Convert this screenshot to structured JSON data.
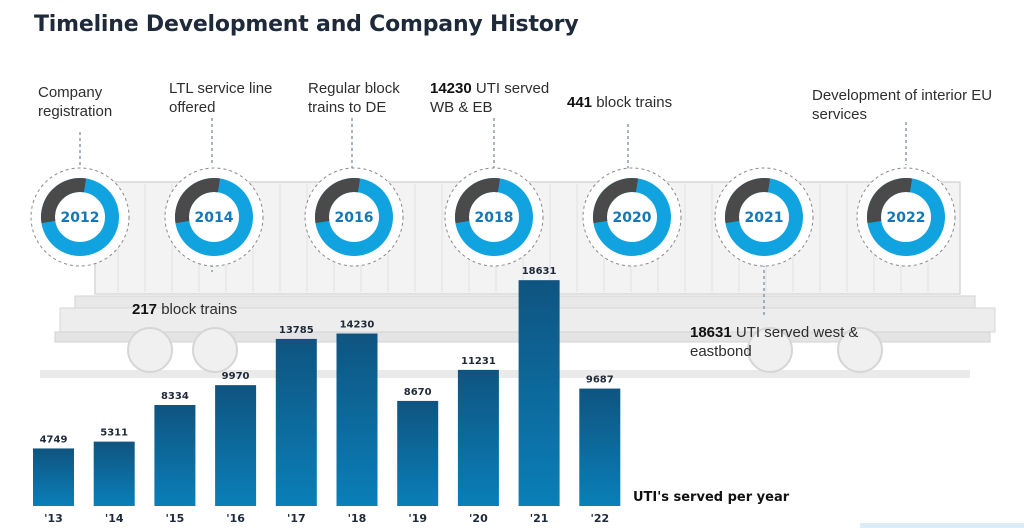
{
  "title": "Timeline Development and Company History",
  "milestones": [
    {
      "year": "2012",
      "text": "Company registration"
    },
    {
      "year": "2014",
      "text": "LTL service line offered"
    },
    {
      "year": "2016",
      "text": "Regular block trains to DE"
    },
    {
      "year": "2018",
      "bold": "14230",
      "text": "UTI served WB & EB"
    },
    {
      "year": "2020",
      "bold": "441",
      "text": "block trains"
    },
    {
      "year": "2021",
      "bold": "18631",
      "text": "UTI served west & eastbond"
    },
    {
      "year": "2022",
      "text": "Development of interior EU services"
    }
  ],
  "extra_note": {
    "bold": "217",
    "text": "block trains"
  },
  "chart_data": {
    "type": "bar",
    "title": "UTI's served per year",
    "categories": [
      "'13",
      "'14",
      "'15",
      "'16",
      "'17",
      "'18",
      "'19",
      "'20",
      "'21",
      "'22"
    ],
    "values": [
      4749,
      5311,
      8334,
      9970,
      13785,
      14230,
      8670,
      11231,
      18631,
      9687
    ],
    "ylim": [
      0,
      19800
    ],
    "grid": false,
    "legend": "none"
  },
  "colors": {
    "bar_top": "#0f5480",
    "bar_bottom": "#0a7fb8",
    "ring": "#10a3e0",
    "ring_arc": "#4a4a4a",
    "year_text": "#1477b8",
    "train": "#ececec",
    "train_stroke": "#c9c9c9"
  }
}
